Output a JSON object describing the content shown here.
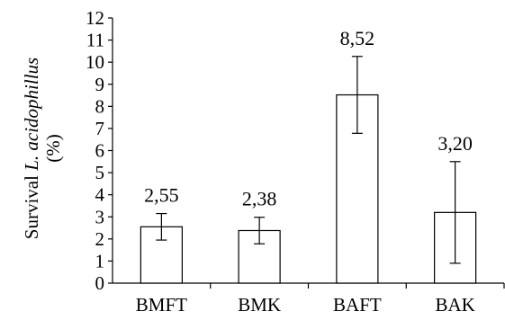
{
  "chart_data": {
    "type": "bar",
    "categories": [
      "BMFT",
      "BMK",
      "BAFT",
      "BAK"
    ],
    "values": [
      2.55,
      2.38,
      8.52,
      3.2
    ],
    "value_labels": [
      "2,55",
      "2,38",
      "8,52",
      "3,20"
    ],
    "error_low": [
      1.95,
      1.78,
      6.78,
      0.9
    ],
    "error_high": [
      3.15,
      2.98,
      10.26,
      5.5
    ],
    "ylim": [
      0,
      12
    ],
    "yticks": [
      0,
      1,
      2,
      3,
      4,
      5,
      6,
      7,
      8,
      9,
      10,
      11,
      12
    ],
    "ylabel": {
      "line1_prefix": "Survival ",
      "line1_italic": "L. acidophillus",
      "line2": "(%)"
    },
    "grid": false,
    "bar_fill": "#ffffff",
    "bar_stroke": "#000000"
  }
}
